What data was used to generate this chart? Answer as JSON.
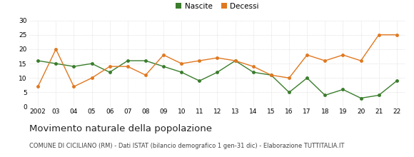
{
  "years": [
    2002,
    2003,
    2004,
    2005,
    2006,
    2007,
    2008,
    2009,
    2010,
    2011,
    2012,
    2013,
    2014,
    2015,
    2016,
    2017,
    2018,
    2019,
    2020,
    2021,
    2022
  ],
  "nascite": [
    16,
    15,
    14,
    15,
    12,
    16,
    16,
    14,
    12,
    9,
    12,
    16,
    12,
    11,
    5,
    10,
    4,
    6,
    3,
    4,
    9
  ],
  "decessi": [
    7,
    20,
    7,
    10,
    14,
    14,
    11,
    18,
    15,
    16,
    17,
    16,
    14,
    11,
    10,
    18,
    16,
    18,
    16,
    25,
    25
  ],
  "nascite_color": "#3a7d2c",
  "decessi_color": "#e07820",
  "ylim": [
    0,
    30
  ],
  "yticks": [
    0,
    5,
    10,
    15,
    20,
    25,
    30
  ],
  "xlabel_labels": [
    "2002",
    "03",
    "04",
    "05",
    "06",
    "07",
    "08",
    "09",
    "10",
    "11",
    "12",
    "13",
    "14",
    "15",
    "16",
    "17",
    "18",
    "19",
    "20",
    "21",
    "22"
  ],
  "title": "Movimento naturale della popolazione",
  "subtitle": "COMUNE DI CICILIANO (RM) - Dati ISTAT (bilancio demografico 1 gen-31 dic) - Elaborazione TUTTITALIA.IT",
  "legend_nascite": "Nascite",
  "legend_decessi": "Decessi",
  "background_color": "#ffffff",
  "grid_color": "#cccccc",
  "marker_size": 3.5,
  "line_width": 1.0,
  "tick_fontsize": 6.5,
  "title_fontsize": 9.5,
  "subtitle_fontsize": 6.0,
  "legend_fontsize": 7.5
}
